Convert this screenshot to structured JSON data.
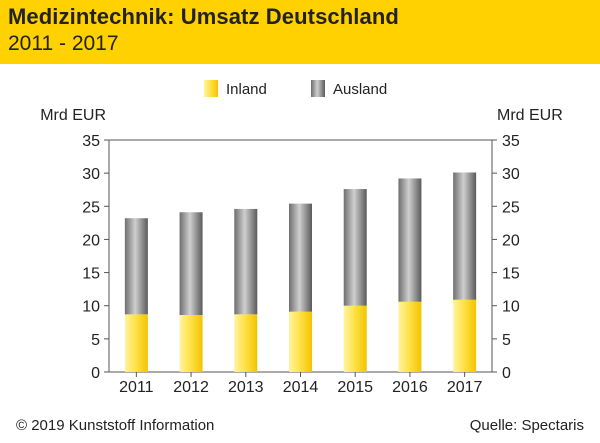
{
  "header": {
    "title": "Medizintechnik: Umsatz Deutschland",
    "subtitle": "2011 - 2017"
  },
  "footer": {
    "copyright": "© 2019 Kunststoff Information",
    "source": "Quelle: Spectaris"
  },
  "colors": {
    "header_bg": "#ffd100",
    "inland": "#ffe14d",
    "ausland": "#8c8c8c"
  },
  "chart_data": {
    "type": "bar",
    "stacked": true,
    "categories": [
      "2011",
      "2012",
      "2013",
      "2014",
      "2015",
      "2016",
      "2017"
    ],
    "series": [
      {
        "name": "Inland",
        "values": [
          8.7,
          8.6,
          8.7,
          9.1,
          10.0,
          10.6,
          10.9
        ]
      },
      {
        "name": "Ausland",
        "values": [
          14.5,
          15.5,
          15.9,
          16.3,
          17.6,
          18.6,
          19.2
        ]
      }
    ],
    "ylabel_left": "Mrd EUR",
    "ylabel_right": "Mrd EUR",
    "ylim": [
      0,
      35
    ],
    "yticks": [
      0,
      5,
      10,
      15,
      20,
      25,
      30,
      35
    ],
    "grid": false,
    "legend_position": "top-center"
  }
}
